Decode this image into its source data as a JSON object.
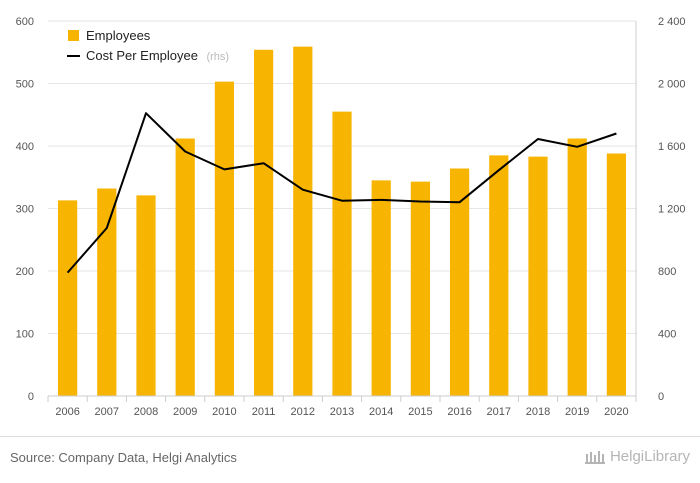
{
  "chart_data": {
    "type": "bar+line",
    "categories": [
      "2006",
      "2007",
      "2008",
      "2009",
      "2010",
      "2011",
      "2012",
      "2013",
      "2014",
      "2015",
      "2016",
      "2017",
      "2018",
      "2019",
      "2020"
    ],
    "series": [
      {
        "name": "Employees",
        "type": "bar",
        "axis": "left",
        "color": "#F7B400",
        "values": [
          313,
          332,
          321,
          412,
          503,
          554,
          559,
          455,
          345,
          343,
          364,
          385,
          383,
          412,
          388
        ]
      },
      {
        "name": "Cost Per Employee",
        "name_note": "(rhs)",
        "type": "line",
        "axis": "right",
        "color": "#000000",
        "values": [
          790,
          1075,
          1810,
          1565,
          1450,
          1490,
          1320,
          1250,
          1255,
          1245,
          1240,
          1445,
          1645,
          1595,
          1680
        ]
      }
    ],
    "y_left": {
      "min": 0,
      "max": 600,
      "ticks": [
        "0",
        "100",
        "200",
        "300",
        "400",
        "500",
        "600"
      ]
    },
    "y_right": {
      "min": 0,
      "max": 2400,
      "ticks": [
        "0",
        "400",
        "800",
        "1 200",
        "1 600",
        "2 000",
        "2 400"
      ]
    },
    "grid": true,
    "legend": "top-left"
  },
  "footer": {
    "source": "Source: Company Data, Helgi Analytics",
    "brand": "HelgiLibrary"
  }
}
